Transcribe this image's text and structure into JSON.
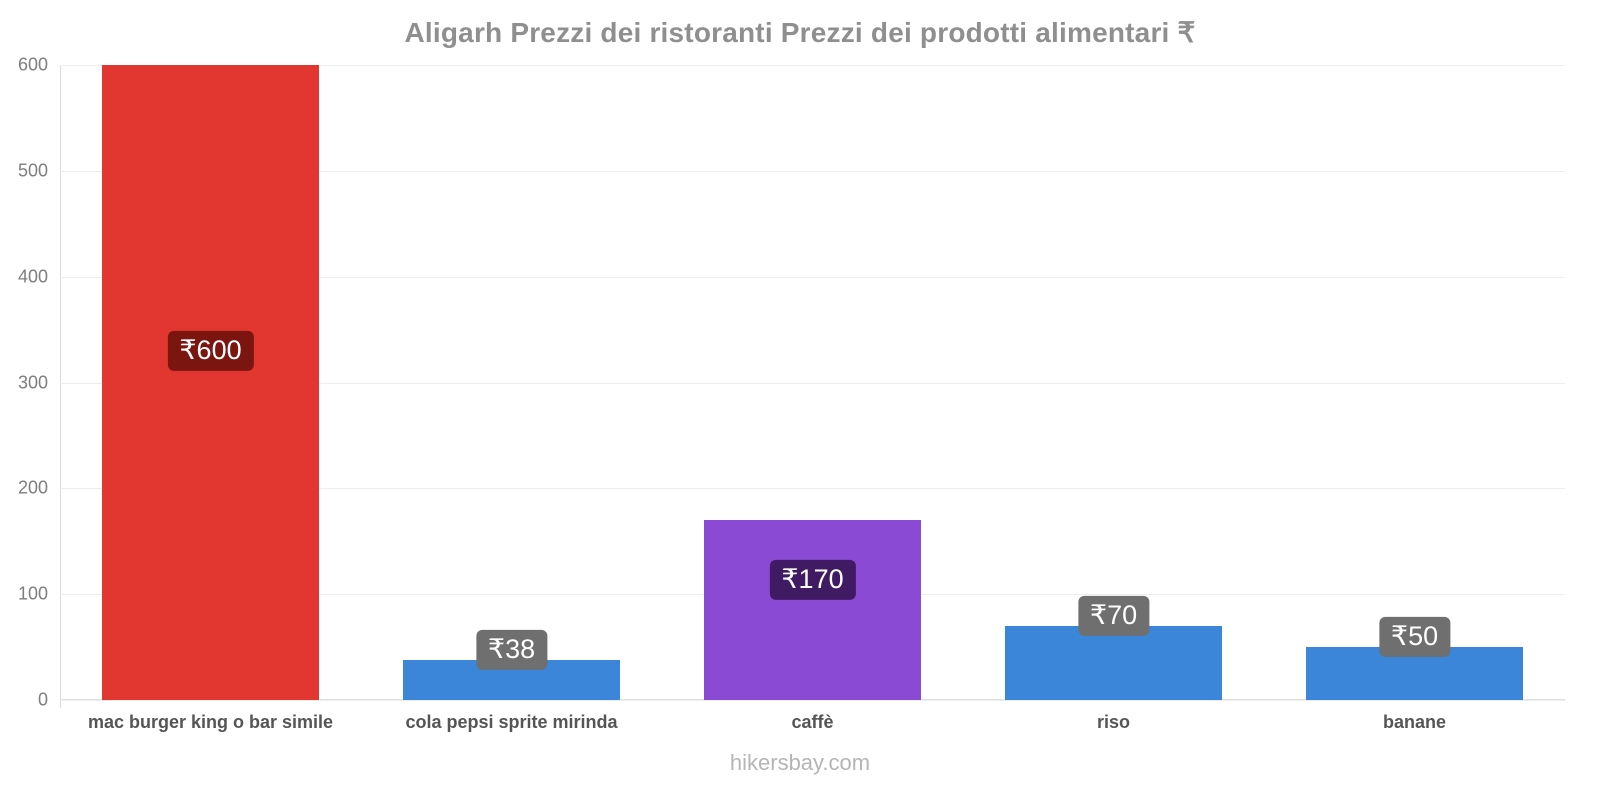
{
  "title": "Aligarh Prezzi dei ristoranti Prezzi dei prodotti alimentari ₹",
  "footer": "hikersbay.com",
  "colors": {
    "red_bar": "#e23730",
    "blue_bar": "#3b86d8",
    "purple_bar": "#8a4ad4",
    "red_badge": "#7b150f",
    "purple_badge": "#401a63",
    "gray_badge": "#6f6f6f"
  },
  "chart_data": {
    "type": "bar",
    "title": "Aligarh Prezzi dei ristoranti Prezzi dei prodotti alimentari ₹",
    "categories": [
      "mac burger king o bar simile",
      "cola pepsi sprite mirinda",
      "caffè",
      "riso",
      "banane"
    ],
    "values": [
      600,
      38,
      170,
      70,
      50
    ],
    "labels": [
      "₹600",
      "₹38",
      "₹170",
      "₹70",
      "₹50"
    ],
    "bar_colors": [
      "#e23730",
      "#3b86d8",
      "#8a4ad4",
      "#3b86d8",
      "#3b86d8"
    ],
    "label_colors": [
      "#7b150f",
      "#6f6f6f",
      "#401a63",
      "#6f6f6f",
      "#6f6f6f"
    ],
    "xlabel": "",
    "ylabel": "",
    "ylim": [
      0,
      600
    ],
    "yticks": [
      0,
      100,
      200,
      300,
      400,
      500,
      600
    ],
    "grid": true,
    "legend": false,
    "currency_symbol": "₹"
  }
}
